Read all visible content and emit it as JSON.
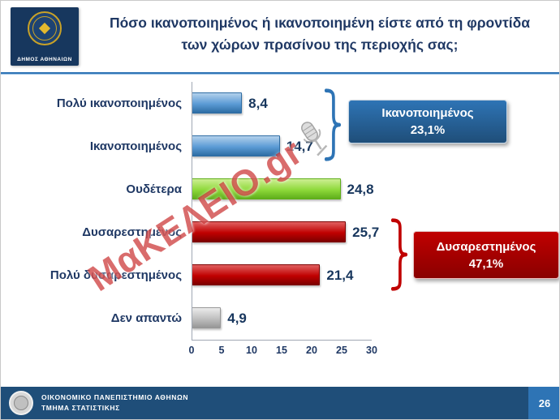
{
  "header": {
    "logo_label": "ΔΗΜΟΣ ΑΘΗΝΑΙΩΝ",
    "title_line1": "Πόσο ικανοποιημένος ή ικανοποιημένη είστε από τη φροντίδα",
    "title_line2": "των χώρων πρασίνου της περιοχής σας;"
  },
  "chart_data": {
    "type": "bar",
    "orientation": "horizontal",
    "title": "Πόσο ικανοποιημένος ή ικανοποιημένη είστε από τη φροντίδα των χώρων πρασίνου της περιοχής σας;",
    "categories": [
      "Πολύ ικανοποιημένος",
      "Ικανοποιημένος",
      "Ουδέτερα",
      "Δυσαρεστημένος",
      "Πολύ δυσαρεστημένος",
      "Δεν απαντώ"
    ],
    "values": [
      8.4,
      14.7,
      24.8,
      25.7,
      21.4,
      4.9
    ],
    "value_labels": [
      "8,4",
      "14,7",
      "24,8",
      "25,7",
      "21,4",
      "4,9"
    ],
    "bar_gradients": [
      [
        "#b3d1ec",
        "#5b9bd5",
        "#2e6da4"
      ],
      [
        "#b3d1ec",
        "#5b9bd5",
        "#2e6da4"
      ],
      [
        "#cdef92",
        "#8ed93a",
        "#5fae1a"
      ],
      [
        "#e06060",
        "#c00000",
        "#7d0000"
      ],
      [
        "#e06060",
        "#c00000",
        "#7d0000"
      ],
      [
        "#ebebeb",
        "#bfbfbf",
        "#979797"
      ]
    ],
    "xlim": [
      0,
      30
    ],
    "x_ticks": [
      "0",
      "5",
      "10",
      "15",
      "20",
      "25",
      "30"
    ],
    "grid": false,
    "legend": false,
    "annotations": [
      {
        "label": "Ικανοποιημένος",
        "value": "23,1%",
        "color": "#2e74b5",
        "color_dark": "#1f4e79"
      },
      {
        "label": "Δυσαρεστημένος",
        "value": "47,1%",
        "color": "#c00000",
        "color_dark": "#8a0000"
      }
    ]
  },
  "watermark": {
    "text": "ΜαΚΕΛΕΙΟ.gr"
  },
  "footer": {
    "org_line1": "ΟΙΚΟΝΟΜΙΚΟ ΠΑΝΕΠΙΣΤΗΜΙΟ ΑΘΗΝΩΝ",
    "org_line2": "ΤΜΗΜΑ ΣΤΑΤΙΣΤΙΚΗΣ",
    "page_number": "26"
  },
  "colors": {
    "title_text": "#1f3864",
    "footer_bg": "#1f4e79",
    "header_rule": "#2e74b5",
    "watermark_red": "#c11212"
  }
}
